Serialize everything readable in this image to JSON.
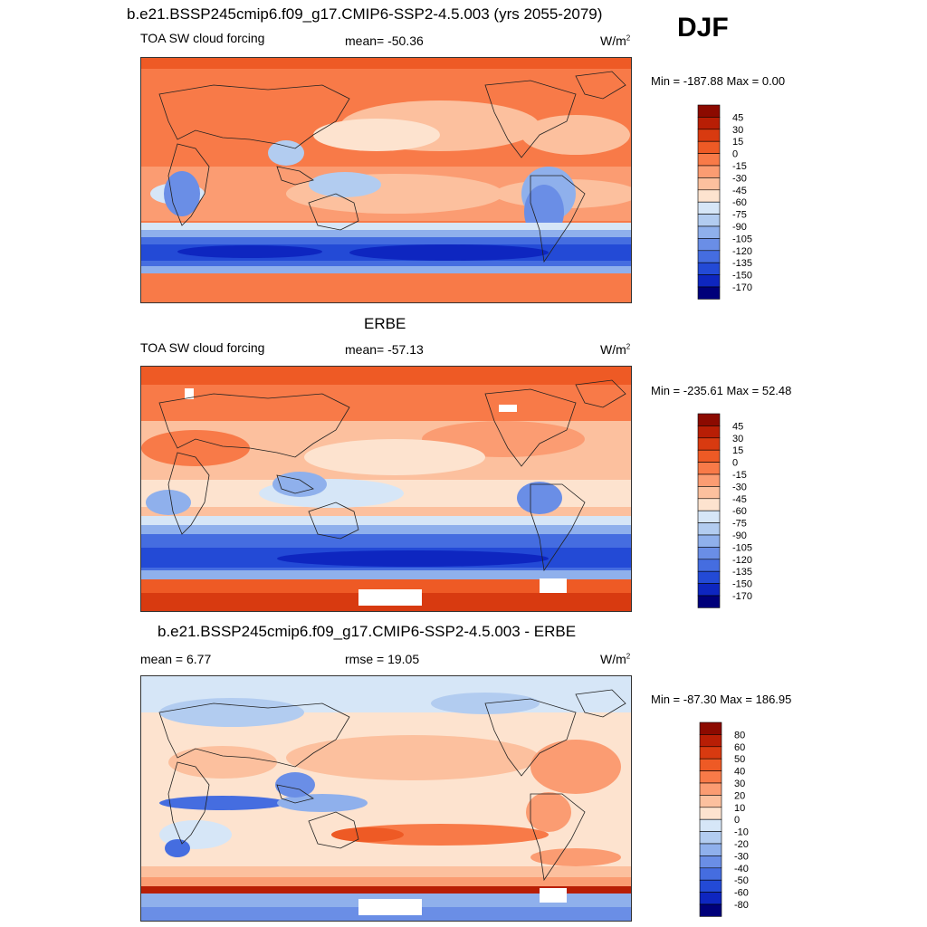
{
  "season": "DJF",
  "units_base": "W/m",
  "units_exp": "2",
  "panels": [
    {
      "title": "b.e21.BSSP245cmip6.f09_g17.CMIP6-SSP2-4.5.003 (yrs 2055-2079)",
      "left_label": "TOA SW cloud forcing",
      "center_label": "mean= -50.36",
      "minmax": "Min = -187.88 Max =   0.00"
    },
    {
      "title": "ERBE",
      "left_label": "TOA SW cloud forcing",
      "center_label": "mean= -57.13",
      "minmax": "Min = -235.61 Max =  52.48"
    },
    {
      "title": "b.e21.BSSP245cmip6.f09_g17.CMIP6-SSP2-4.5.003 - ERBE",
      "left_label": "mean =   6.77",
      "center_label": "rmse =  19.05",
      "minmax": "Min = -87.30 Max = 186.95"
    }
  ],
  "colorbar_abs": {
    "labels": [
      "45",
      "30",
      "15",
      "0",
      "-15",
      "-30",
      "-45",
      "-60",
      "-75",
      "-90",
      "-105",
      "-120",
      "-135",
      "-150",
      "-170"
    ],
    "colors": [
      "#8c0a00",
      "#b81e05",
      "#d83a10",
      "#ee5a25",
      "#f87a48",
      "#fb9c72",
      "#fcc09e",
      "#fde3cf",
      "#d6e6f7",
      "#b2ccf0",
      "#8fb0ec",
      "#6a8ee6",
      "#456de0",
      "#234ad6",
      "#0e26c0",
      "#00007a"
    ]
  },
  "colorbar_diff": {
    "labels": [
      "80",
      "60",
      "50",
      "40",
      "30",
      "20",
      "10",
      "0",
      "-10",
      "-20",
      "-30",
      "-40",
      "-50",
      "-60",
      "-80"
    ],
    "colors": [
      "#8c0a00",
      "#b81e05",
      "#d83a10",
      "#ee5a25",
      "#f87a48",
      "#fb9c72",
      "#fcc09e",
      "#fde3cf",
      "#d6e6f7",
      "#b2ccf0",
      "#8fb0ec",
      "#6a8ee6",
      "#456de0",
      "#234ad6",
      "#0e26c0",
      "#00007a"
    ]
  }
}
